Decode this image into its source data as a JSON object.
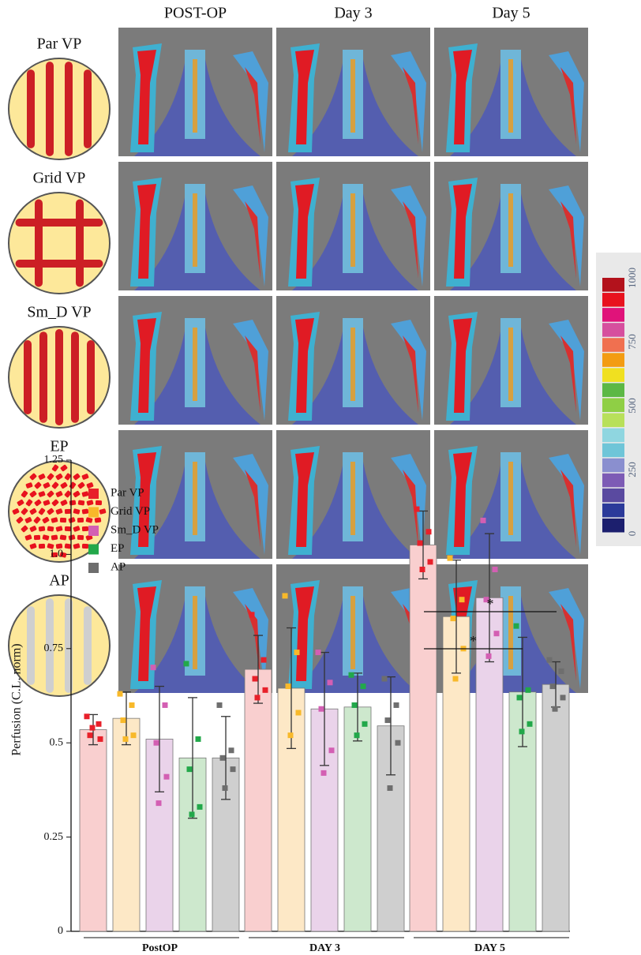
{
  "figure": {
    "column_headers": [
      "POST-OP",
      "Day 3",
      "Day 5"
    ],
    "row_labels": [
      "Par VP",
      "Grid VP",
      "Sm_D VP",
      "EP",
      "AP"
    ],
    "colorbar": {
      "lim": [
        0,
        1000
      ],
      "ticks": [
        0,
        250,
        500,
        750,
        1000
      ],
      "colors": [
        "#1c1f6e",
        "#2b3a9a",
        "#5a4aa0",
        "#7d5bb5",
        "#8a8fcf",
        "#6fc5d8",
        "#8fd6e0",
        "#b8e05a",
        "#8fcf45",
        "#5cb845",
        "#f0e020",
        "#f39c12",
        "#f07050",
        "#d64f9e",
        "#e0137a",
        "#e8121e",
        "#b3121c"
      ]
    }
  },
  "chart_data": {
    "type": "bar",
    "y_label": "Perfusion (C.L. norm)",
    "categories": [
      "PostOP",
      "DAY 3",
      "DAY 5"
    ],
    "ylim": [
      0,
      1.25
    ],
    "yticks": [
      0,
      0.25,
      0.5,
      0.75,
      {
        "value": 1,
        "label": "1.0"
      },
      1.25
    ],
    "annotations": [
      "*",
      "*"
    ],
    "series": [
      {
        "name": "Par VP",
        "color": "#e8202a",
        "fill": "#f9cfcf",
        "values": [
          0.535,
          0.695,
          1.025
        ],
        "errors": [
          0.04,
          0.09,
          0.09
        ],
        "points": [
          [
            0.57,
            0.55,
            0.52,
            0.51,
            0.54
          ],
          [
            0.84,
            0.72,
            0.67,
            0.64,
            0.62
          ],
          [
            1.12,
            1.06,
            1.03,
            0.98,
            0.96
          ]
        ]
      },
      {
        "name": "Grid VP",
        "color": "#f8b92a",
        "fill": "#fde8c6",
        "values": [
          0.565,
          0.645,
          0.835
        ],
        "errors": [
          0.07,
          0.16,
          0.15
        ],
        "points": [
          [
            0.63,
            0.6,
            0.56,
            0.52,
            0.51
          ],
          [
            0.89,
            0.74,
            0.65,
            0.58,
            0.52
          ],
          [
            0.99,
            0.88,
            0.83,
            0.75,
            0.67
          ]
        ]
      },
      {
        "name": "Sm_D VP",
        "color": "#d35fb3",
        "fill": "#ead3ea",
        "values": [
          0.51,
          0.59,
          0.885
        ],
        "errors": [
          0.14,
          0.15,
          0.17
        ],
        "points": [
          [
            0.7,
            0.6,
            0.5,
            0.41,
            0.34
          ],
          [
            0.74,
            0.66,
            0.59,
            0.48,
            0.42
          ],
          [
            1.09,
            0.96,
            0.88,
            0.79,
            0.73
          ]
        ]
      },
      {
        "name": "EP",
        "color": "#22a84a",
        "fill": "#cde8cd",
        "values": [
          0.46,
          0.595,
          0.635
        ],
        "errors": [
          0.16,
          0.09,
          0.145
        ],
        "points": [
          [
            0.71,
            0.51,
            0.43,
            0.33,
            0.31
          ],
          [
            0.68,
            0.65,
            0.6,
            0.55,
            0.52
          ],
          [
            0.81,
            0.64,
            0.62,
            0.55,
            0.53
          ]
        ]
      },
      {
        "name": "AP",
        "color": "#6e6e6e",
        "fill": "#cfcfcf",
        "values": [
          0.46,
          0.545,
          0.655
        ],
        "errors": [
          0.11,
          0.13,
          0.06
        ],
        "points": [
          [
            0.6,
            0.48,
            0.46,
            0.43,
            0.38
          ],
          [
            0.67,
            0.6,
            0.56,
            0.5,
            0.38
          ],
          [
            0.72,
            0.69,
            0.65,
            0.62,
            0.59
          ]
        ]
      }
    ]
  }
}
